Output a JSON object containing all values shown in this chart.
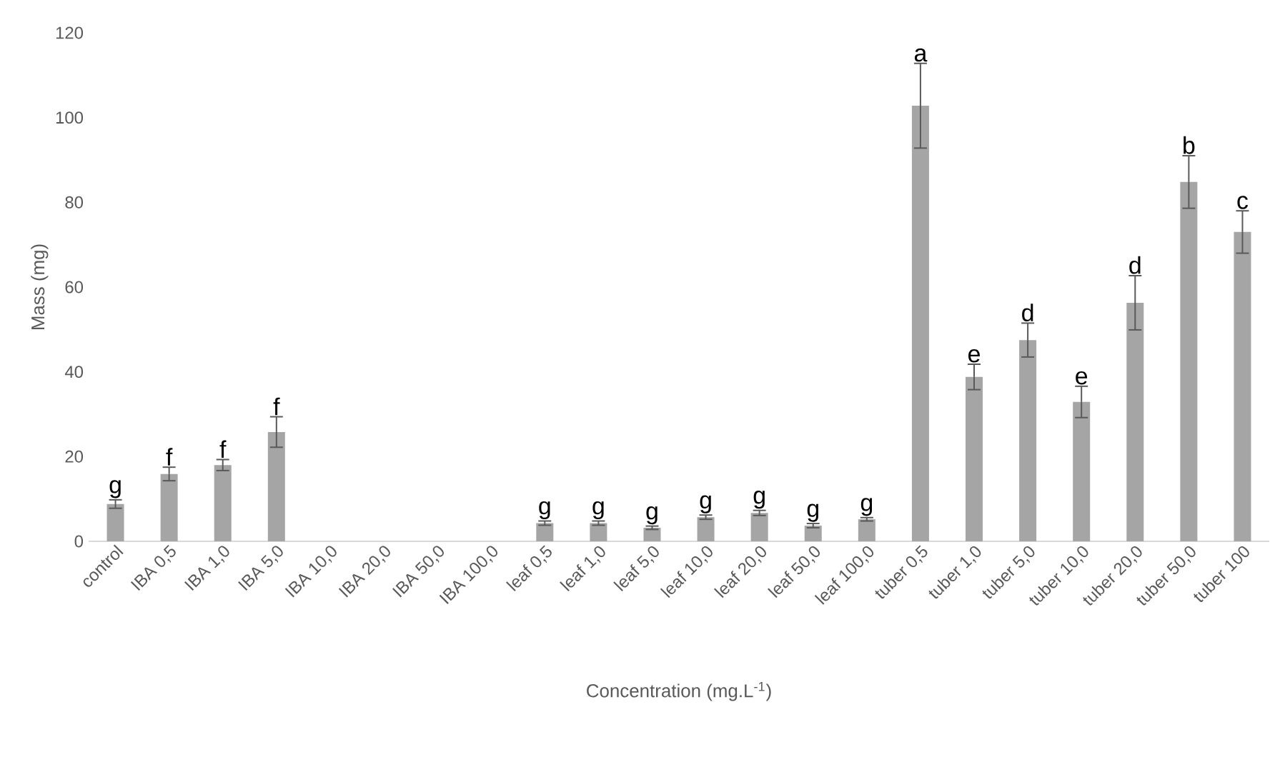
{
  "chart_data": {
    "type": "bar",
    "xlabel": "Concentration (mg.L$^{-1}$)",
    "ylabel": "Mass (mg)",
    "categories": [
      "control",
      "IBA 0,5",
      "IBA 1,0",
      "IBA 5,0",
      "IBA 10,0",
      "IBA 20,0",
      "IBA 50,0",
      "IBA 100,0",
      "leaf 0,5",
      "leaf 1,0",
      "leaf 5,0",
      "leaf 10,0",
      "leaf 20,0",
      "leaf 50,0",
      "leaf 100,0",
      "tuber 0,5",
      "tuber 1,0",
      "tuber 5,0",
      "tuber 10,0",
      "tuber 20,0",
      "tuber 50,0",
      "tuber 100"
    ],
    "values": [
      8.8,
      15.9,
      18,
      25.8,
      0,
      0,
      0,
      0,
      4.3,
      4.3,
      3.2,
      5.7,
      6.7,
      3.7,
      5.2,
      102.8,
      38.8,
      47.5,
      32.9,
      56.3,
      84.8,
      73
    ],
    "errors": [
      1,
      1.6,
      1.3,
      3.6,
      null,
      null,
      null,
      null,
      0.5,
      0.5,
      0.4,
      0.5,
      0.6,
      0.5,
      0.4,
      10,
      3,
      4,
      3.7,
      6.4,
      6.2,
      5
    ],
    "color": "#a5a5a5",
    "ylim": [
      0,
      120
    ],
    "yticks": [
      0,
      20,
      40,
      60,
      80,
      100,
      120
    ],
    "annotations": [
      {
        "text": "g",
        "x": "control",
        "y": 9.8
      },
      {
        "text": "f",
        "x": "IBA 0,5",
        "y": 17.5
      },
      {
        "text": "f",
        "x": "IBA 1,0",
        "y": 19.3
      },
      {
        "text": "f",
        "x": "IBA 5,0",
        "y": 29.4
      },
      {
        "text": "g",
        "x": "leaf 0,5",
        "y": 4.8
      },
      {
        "text": "g",
        "x": "leaf 1,0",
        "y": 4.8
      },
      {
        "text": "g",
        "x": "leaf 5,0",
        "y": 3.6
      },
      {
        "text": "g",
        "x": "leaf 10,0",
        "y": 6.2
      },
      {
        "text": "g",
        "x": "leaf 20,0",
        "y": 7.3
      },
      {
        "text": "g",
        "x": "leaf 50,0",
        "y": 4.2
      },
      {
        "text": "g",
        "x": "leaf 100,0",
        "y": 5.6
      },
      {
        "text": "a",
        "x": "tuber 0,5",
        "y": 112.8
      },
      {
        "text": "e",
        "x": "tuber 1,0",
        "y": 41.8
      },
      {
        "text": "d",
        "x": "tuber 5,0",
        "y": 51.5
      },
      {
        "text": "e",
        "x": "tuber 10,0",
        "y": 36.6
      },
      {
        "text": "d",
        "x": "tuber 20,0",
        "y": 62.7
      },
      {
        "text": "b",
        "x": "tuber 50,0",
        "y": 91
      },
      {
        "text": "c",
        "x": "tuber 100",
        "y": 78
      }
    ]
  }
}
